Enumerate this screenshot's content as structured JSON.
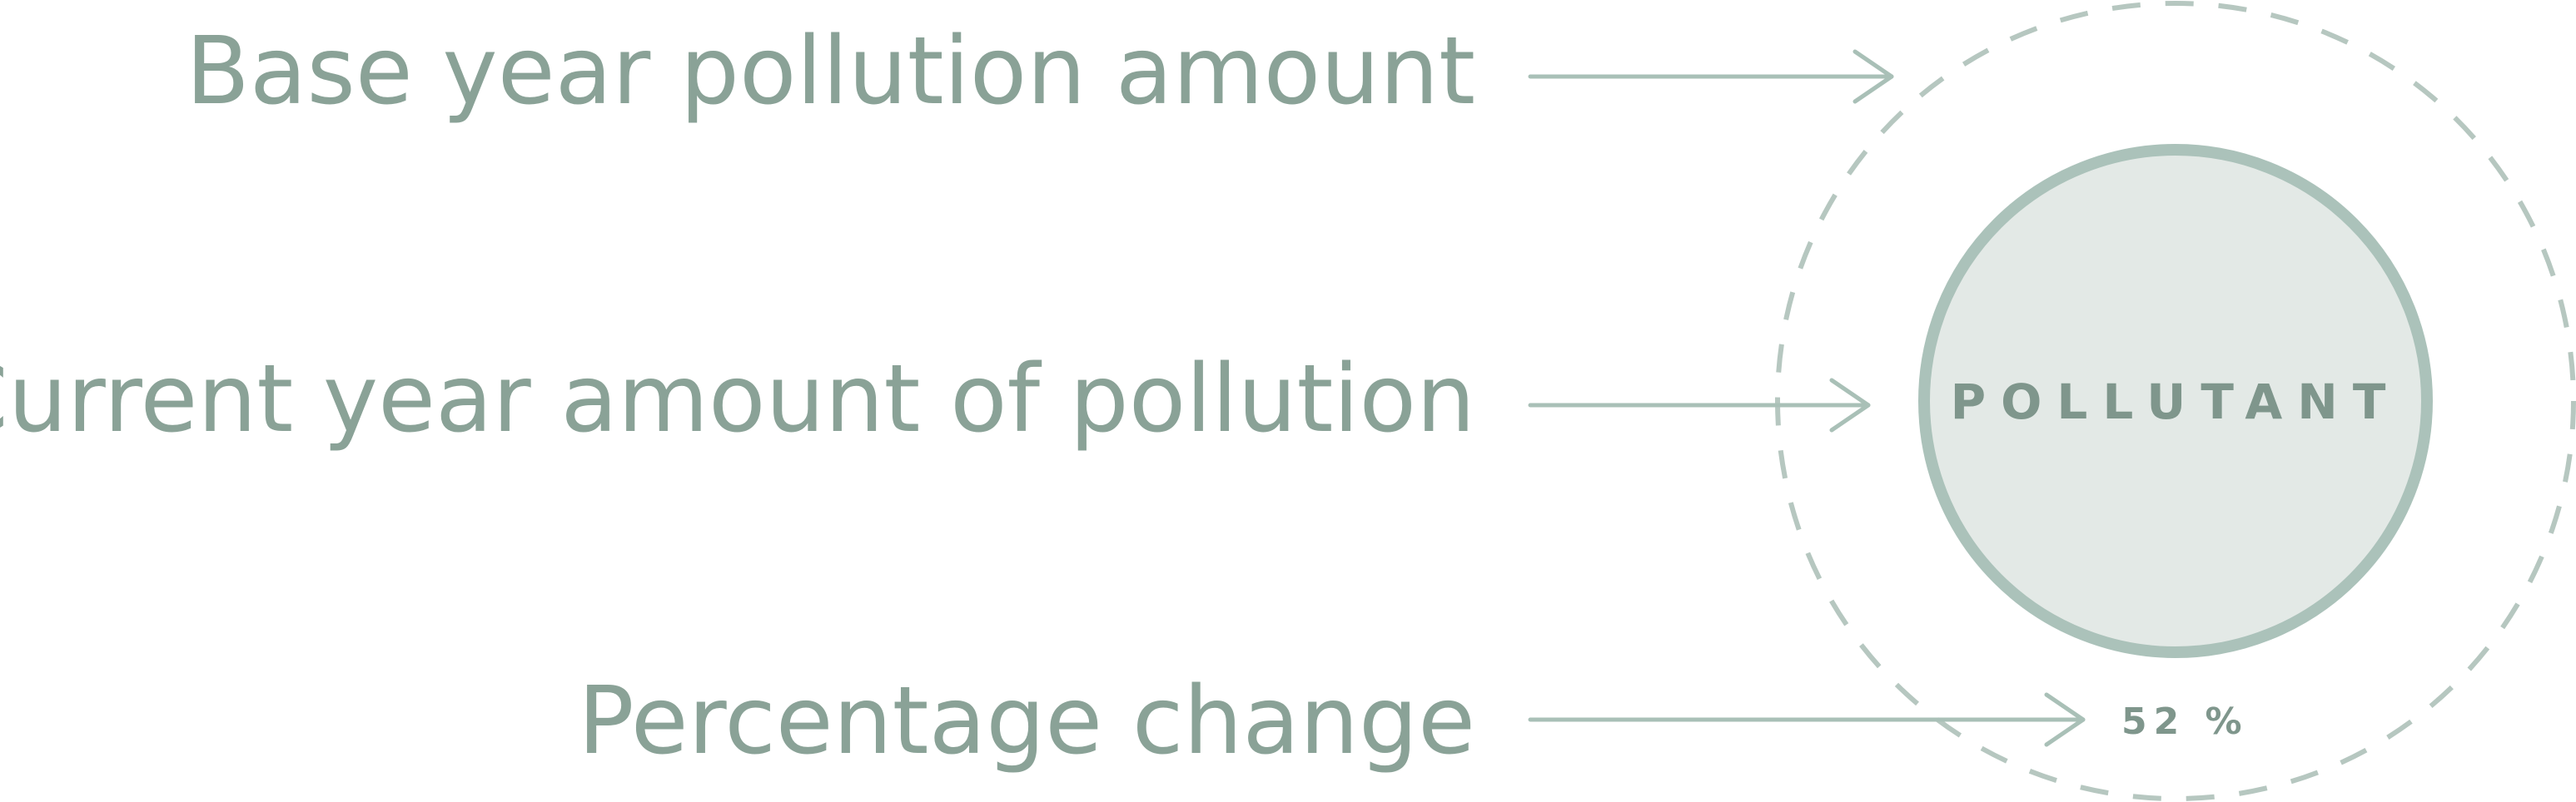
{
  "labels": {
    "base_year": "Base year pollution amount",
    "current_year": "Current year amount of pollution",
    "percentage": "Percentage change"
  },
  "center_label": "POLLUTANT",
  "percent_value": "52 %",
  "colors": {
    "text": "#8aa297",
    "arrow": "#a9c0b7",
    "inner_fill": "#e3e9e6",
    "inner_stroke": "#abc2ba",
    "dashed": "#b6c7c0"
  }
}
